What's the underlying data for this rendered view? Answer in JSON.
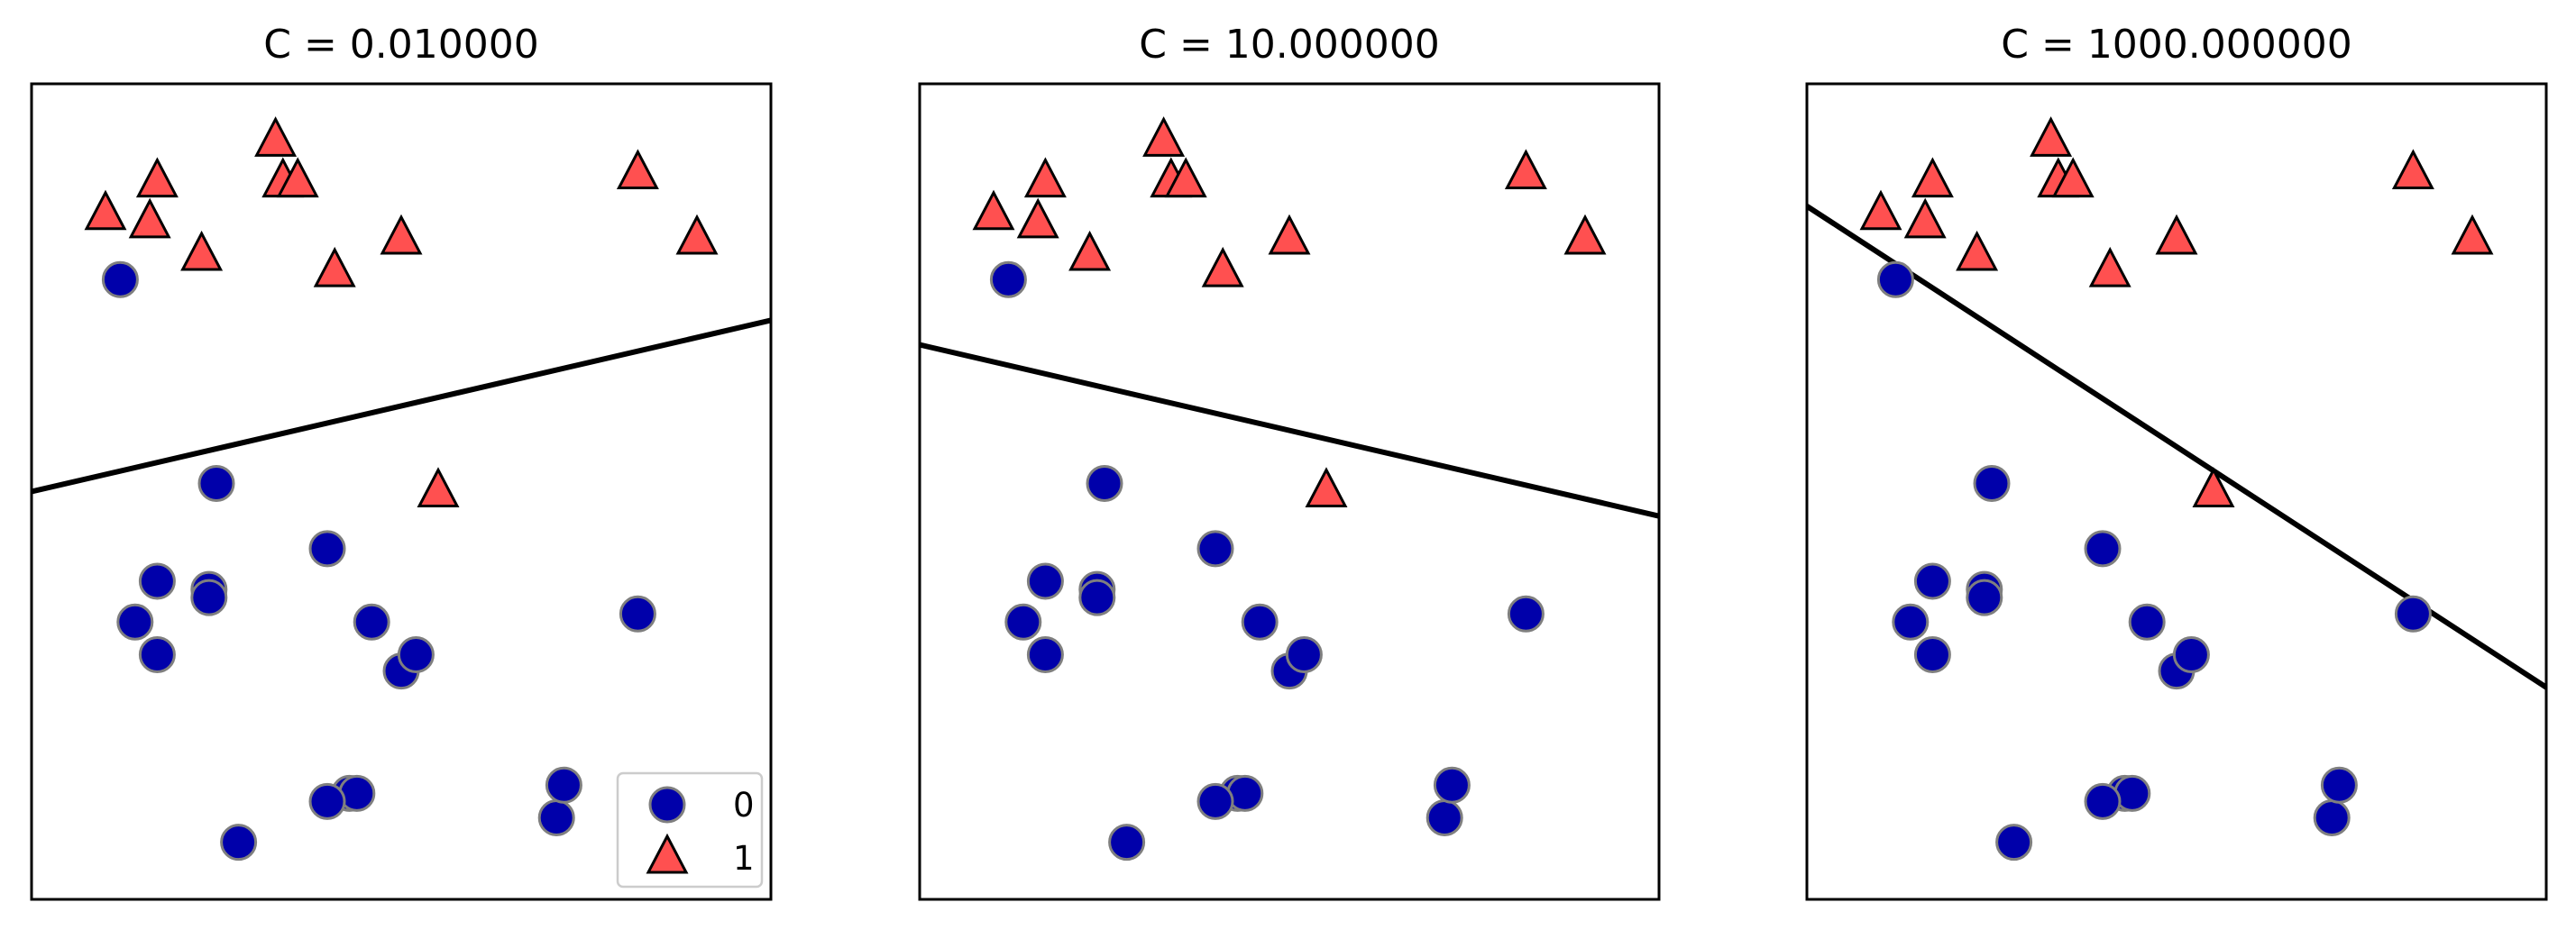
{
  "chart_data": [
    {
      "type": "scatter",
      "title": "C = 0.010000",
      "xlabel": "",
      "ylabel": "",
      "xlim": [
        0,
        100
      ],
      "ylim": [
        0,
        100
      ],
      "grid": false,
      "ticks": false,
      "legend": {
        "placement": "bottom-right",
        "entries": [
          "0",
          "1"
        ]
      },
      "decision_boundary": {
        "x": [
          0,
          100
        ],
        "y": [
          50,
          71
        ]
      },
      "series": [
        {
          "name": "0",
          "marker": "circle",
          "x": [
            12,
            25,
            17,
            24,
            24,
            14,
            17,
            40,
            46,
            50,
            52,
            82,
            43,
            44,
            40,
            71,
            72,
            28
          ],
          "y": [
            76,
            51,
            39,
            38,
            37,
            34,
            30,
            43,
            34,
            28,
            30,
            35,
            13,
            13,
            12,
            10,
            14,
            7
          ]
        },
        {
          "name": "1",
          "marker": "triangle",
          "x": [
            10,
            17,
            16,
            23,
            33,
            34,
            36,
            41,
            50,
            55,
            82,
            90
          ],
          "y": [
            84,
            88,
            83,
            79,
            93,
            88,
            88,
            77,
            81,
            50,
            89,
            81
          ]
        }
      ]
    },
    {
      "type": "scatter",
      "title": "C = 10.000000",
      "xlabel": "",
      "ylabel": "",
      "xlim": [
        0,
        100
      ],
      "ylim": [
        0,
        100
      ],
      "grid": false,
      "ticks": false,
      "decision_boundary": {
        "x": [
          0,
          100
        ],
        "y": [
          68,
          47
        ]
      },
      "series": [
        {
          "name": "0",
          "marker": "circle",
          "x": [
            12,
            25,
            17,
            24,
            24,
            14,
            17,
            40,
            46,
            50,
            52,
            82,
            43,
            44,
            40,
            71,
            72,
            28
          ],
          "y": [
            76,
            51,
            39,
            38,
            37,
            34,
            30,
            43,
            34,
            28,
            30,
            35,
            13,
            13,
            12,
            10,
            14,
            7
          ]
        },
        {
          "name": "1",
          "marker": "triangle",
          "x": [
            10,
            17,
            16,
            23,
            33,
            34,
            36,
            41,
            50,
            55,
            82,
            90
          ],
          "y": [
            84,
            88,
            83,
            79,
            93,
            88,
            88,
            77,
            81,
            50,
            89,
            81
          ]
        }
      ]
    },
    {
      "type": "scatter",
      "title": "C = 1000.000000",
      "xlabel": "",
      "ylabel": "",
      "xlim": [
        0,
        100
      ],
      "ylim": [
        0,
        100
      ],
      "grid": false,
      "ticks": false,
      "decision_boundary": {
        "x": [
          0,
          100
        ],
        "y": [
          85,
          26
        ]
      },
      "series": [
        {
          "name": "0",
          "marker": "circle",
          "x": [
            12,
            25,
            17,
            24,
            24,
            14,
            17,
            40,
            46,
            50,
            52,
            82,
            43,
            44,
            40,
            71,
            72,
            28
          ],
          "y": [
            76,
            51,
            39,
            38,
            37,
            34,
            30,
            43,
            34,
            28,
            30,
            35,
            13,
            13,
            12,
            10,
            14,
            7
          ]
        },
        {
          "name": "1",
          "marker": "triangle",
          "x": [
            10,
            17,
            16,
            23,
            33,
            34,
            36,
            41,
            50,
            55,
            82,
            90
          ],
          "y": [
            84,
            88,
            83,
            79,
            93,
            88,
            88,
            77,
            81,
            50,
            89,
            81
          ]
        }
      ]
    }
  ],
  "colors": {
    "class_0_fill": "#0000aa",
    "class_0_edge": "#7f7f7f",
    "class_1_fill": "#ff5050",
    "class_1_edge": "#000000",
    "boundary": "#000000"
  },
  "icons": {
    "class_0_marker": "circle-marker-icon",
    "class_1_marker": "triangle-marker-icon"
  }
}
